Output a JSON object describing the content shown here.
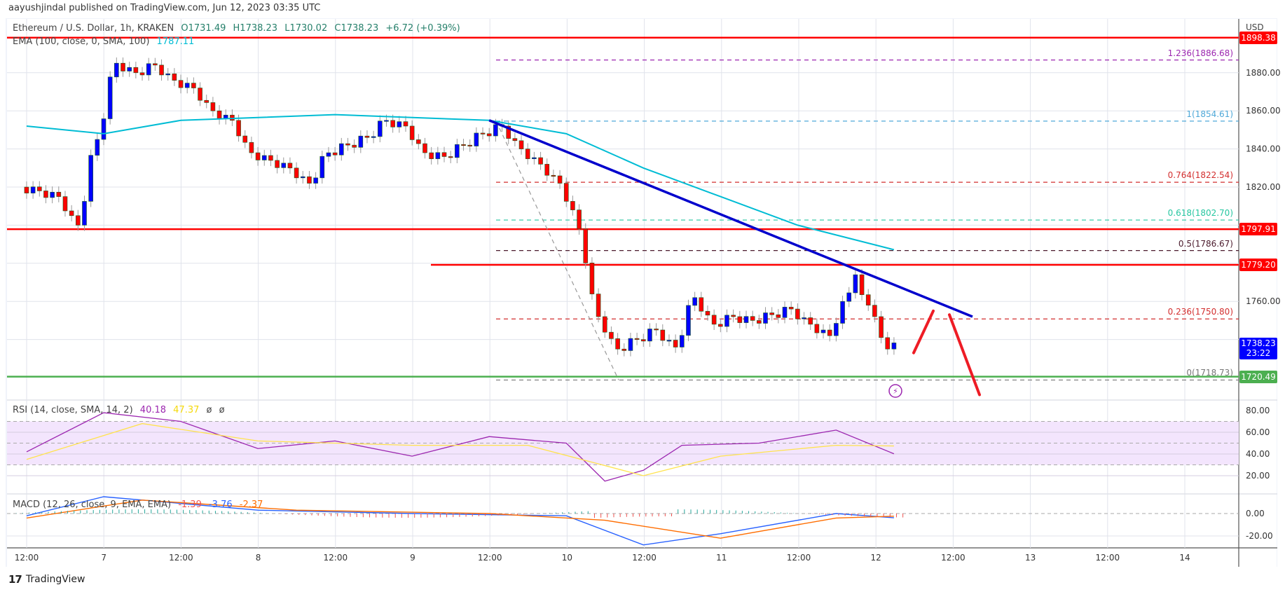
{
  "publisher": "aayushjindal published on TradingView.com, Jun 12, 2023 03:35 UTC",
  "symbol": {
    "title": "Ethereum / U.S. Dollar, 1h, KRAKEN",
    "open": "O1731.49",
    "high": "H1738.23",
    "low": "L1730.02",
    "close": "C1738.23",
    "change": "+6.72 (+0.39%)"
  },
  "ema": {
    "label": "EMA (100, close, 0, SMA, 100)",
    "value": "1787.11",
    "color": "#00bcd4"
  },
  "rsi": {
    "label": "RSI (14, close, SMA, 14, 2)",
    "value": "40.18",
    "sma": "47.37",
    "extra1": "ø",
    "extra2": "ø",
    "color": "#9c27b0",
    "sma_color": "#ffeb3b"
  },
  "macd": {
    "label": "MACD (12, 26, close, 9, EMA, EMA)",
    "hist": "-1.39",
    "macd": "-3.76",
    "signal": "-2.37",
    "macd_color": "#2962ff",
    "signal_color": "#ff6d00"
  },
  "axis": {
    "currency": "USD",
    "price_ticks": [
      "1880.00",
      "1860.00",
      "1840.00",
      "1820.00",
      "1760.00"
    ],
    "rsi_ticks": [
      "80.00",
      "60.00",
      "40.00",
      "20.00"
    ],
    "macd_ticks": [
      "0.00",
      "-20.00"
    ],
    "time_ticks": [
      "12:00",
      "7",
      "12:00",
      "8",
      "12:00",
      "9",
      "12:00",
      "10",
      "12:00",
      "11",
      "12:00",
      "12",
      "12:00",
      "13",
      "12:00",
      "14"
    ]
  },
  "price_tags": {
    "top_resistance": {
      "value": "1898.38",
      "color": "#ff0000"
    },
    "resistance_1": {
      "value": "1797.91",
      "color": "#ff0000"
    },
    "resistance_2": {
      "value": "1779.20",
      "color": "#ff0000"
    },
    "last_price": {
      "value": "1738.23",
      "countdown": "23:22",
      "color": "#0000ff"
    },
    "support": {
      "value": "1720.49",
      "color": "#4caf50"
    }
  },
  "fib_levels": [
    {
      "label": "1.236(1886.68)",
      "price": 1886.68,
      "color": "#9c27b0"
    },
    {
      "label": "1(1854.61)",
      "price": 1854.61,
      "color": "#4fa8d8"
    },
    {
      "label": "0.764(1822.54)",
      "price": 1822.54,
      "color": "#d32f2f"
    },
    {
      "label": "0.618(1802.70)",
      "price": 1802.7,
      "color": "#26c6a0"
    },
    {
      "label": "0.5(1786.67)",
      "price": 1786.67,
      "color": "#4a1a2c"
    },
    {
      "label": "0.236(1750.80)",
      "price": 1750.8,
      "color": "#d32f2f"
    },
    {
      "label": "0(1718.73)",
      "price": 1718.73,
      "color": "#777777"
    }
  ],
  "footer": {
    "brand": "TradingView"
  },
  "chart_data": {
    "type": "candlestick",
    "title": "Ethereum / U.S. Dollar, 1h, KRAKEN",
    "xlabel": "",
    "ylabel": "USD",
    "ylim": [
      1710,
      1905
    ],
    "x_range": [
      "Jun 6 12:00",
      "Jun 14 ~12:00"
    ],
    "grid": true,
    "horizontal_lines": [
      {
        "price": 1898.38,
        "color": "#ff0000",
        "style": "solid"
      },
      {
        "price": 1797.91,
        "color": "#ff0000",
        "style": "solid"
      },
      {
        "price": 1779.2,
        "color": "#ff0000",
        "style": "solid",
        "start": "Jun 10 ~03:00"
      },
      {
        "price": 1720.49,
        "color": "#4caf50",
        "style": "solid"
      }
    ],
    "trendline": {
      "from": {
        "time": "Jun 9 12:00",
        "price": 1855
      },
      "to": {
        "time": "Jun 12 ~14:00",
        "price": 1752
      },
      "color": "#0000cc"
    },
    "fib_retracement": {
      "high": 1854.61,
      "low": 1718.73,
      "levels": {
        "1.236": 1886.68,
        "1": 1854.61,
        "0.764": 1822.54,
        "0.618": 1802.7,
        "0.5": 1786.67,
        "0.236": 1750.8,
        "0": 1718.73
      }
    },
    "projection": {
      "up_to": 1755,
      "then_down_to": 1712,
      "color": "#ff0000"
    },
    "series": [
      {
        "name": "ETHUSD close (approx, 1h)",
        "points": [
          [
            "6 12:00",
            1818
          ],
          [
            "6 15:00",
            1815
          ],
          [
            "6 18:00",
            1800
          ],
          [
            "6 21:00",
            1845
          ],
          [
            "7 00:00",
            1885
          ],
          [
            "7 03:00",
            1880
          ],
          [
            "7 06:00",
            1884
          ],
          [
            "7 09:00",
            1876
          ],
          [
            "7 12:00",
            1872
          ],
          [
            "7 15:00",
            1860
          ],
          [
            "7 18:00",
            1855
          ],
          [
            "7 21:00",
            1838
          ],
          [
            "8 00:00",
            1834
          ],
          [
            "8 03:00",
            1830
          ],
          [
            "8 06:00",
            1822
          ],
          [
            "8 09:00",
            1838
          ],
          [
            "8 12:00",
            1842
          ],
          [
            "8 15:00",
            1846
          ],
          [
            "8 18:00",
            1855
          ],
          [
            "8 21:00",
            1852
          ],
          [
            "9 00:00",
            1838
          ],
          [
            "9 03:00",
            1836
          ],
          [
            "9 06:00",
            1842
          ],
          [
            "9 09:00",
            1848
          ],
          [
            "9 12:00",
            1852
          ],
          [
            "9 15:00",
            1840
          ],
          [
            "9 18:00",
            1832
          ],
          [
            "9 21:00",
            1822
          ],
          [
            "10 00:00",
            1808
          ],
          [
            "10 02:00",
            1798
          ],
          [
            "10 03:00",
            1752
          ],
          [
            "10 06:00",
            1735
          ],
          [
            "10 09:00",
            1740
          ],
          [
            "10 12:00",
            1745
          ],
          [
            "10 15:00",
            1736
          ],
          [
            "10 18:00",
            1762
          ],
          [
            "10 21:00",
            1748
          ],
          [
            "11 00:00",
            1752
          ],
          [
            "11 03:00",
            1750
          ],
          [
            "11 06:00",
            1753
          ],
          [
            "11 09:00",
            1756
          ],
          [
            "11 12:00",
            1748
          ],
          [
            "11 15:00",
            1742
          ],
          [
            "11 18:00",
            1760
          ],
          [
            "11 20:00",
            1774
          ],
          [
            "11 22:00",
            1758
          ],
          [
            "12 00:00",
            1752
          ],
          [
            "12 01:00",
            1735
          ],
          [
            "12 03:00",
            1738.23
          ]
        ]
      },
      {
        "name": "EMA 100",
        "points": [
          [
            "6 12:00",
            1852
          ],
          [
            "7 00:00",
            1848
          ],
          [
            "7 12:00",
            1855
          ],
          [
            "8 12:00",
            1858
          ],
          [
            "9 12:00",
            1855
          ],
          [
            "10 00:00",
            1848
          ],
          [
            "10 12:00",
            1830
          ],
          [
            "11 00:00",
            1815
          ],
          [
            "11 12:00",
            1800
          ],
          [
            "12 03:00",
            1787.11
          ]
        ]
      },
      {
        "name": "RSI",
        "points": [
          [
            "6 12:00",
            42
          ],
          [
            "7 00:00",
            78
          ],
          [
            "7 12:00",
            70
          ],
          [
            "8 00:00",
            45
          ],
          [
            "8 12:00",
            52
          ],
          [
            "9 00:00",
            38
          ],
          [
            "9 12:00",
            56
          ],
          [
            "10 00:00",
            50
          ],
          [
            "10 06:00",
            15
          ],
          [
            "10 12:00",
            25
          ],
          [
            "10 18:00",
            48
          ],
          [
            "11 06:00",
            50
          ],
          [
            "11 18:00",
            62
          ],
          [
            "12 03:00",
            40.18
          ]
        ]
      },
      {
        "name": "MACD",
        "points": [
          [
            "6 12:00",
            -2
          ],
          [
            "7 00:00",
            15
          ],
          [
            "8 00:00",
            3
          ],
          [
            "9 00:00",
            0
          ],
          [
            "10 00:00",
            -2
          ],
          [
            "10 12:00",
            -28
          ],
          [
            "11 00:00",
            -18
          ],
          [
            "11 18:00",
            0
          ],
          [
            "12 03:00",
            -3.76
          ]
        ]
      }
    ]
  }
}
